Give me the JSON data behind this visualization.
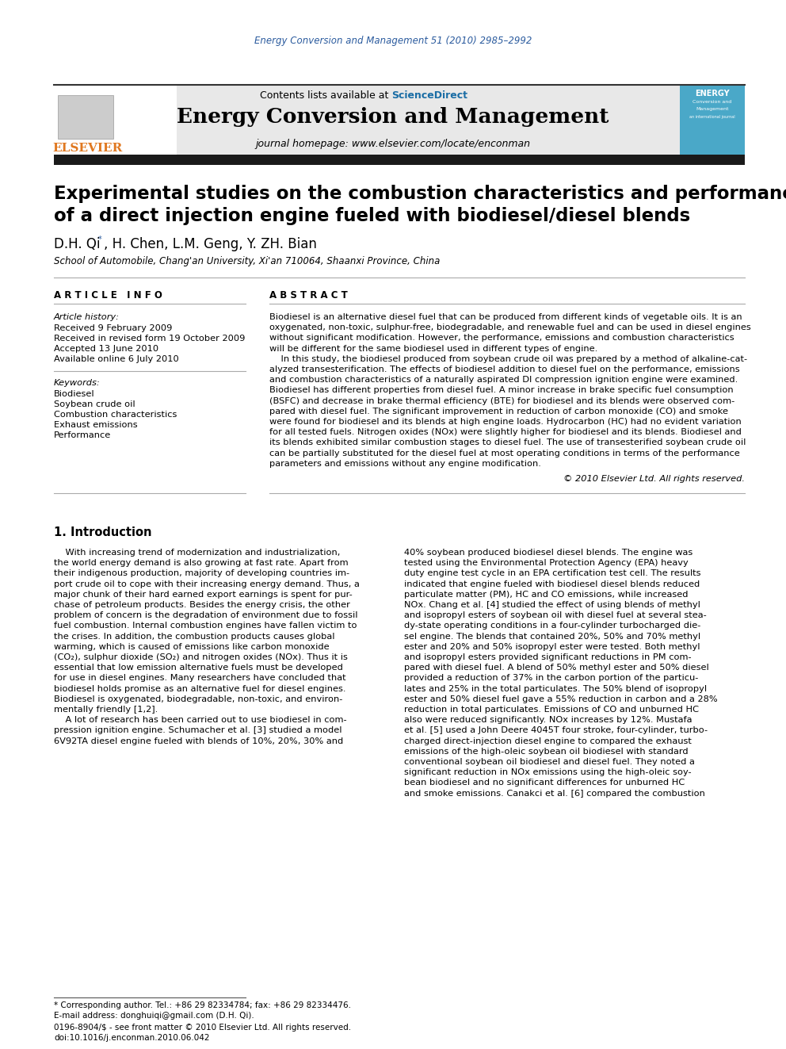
{
  "journal_ref": "Energy Conversion and Management 51 (2010) 2985–2992",
  "contents_text": "Contents lists available at ",
  "sciencedirect": "ScienceDirect",
  "journal_name": "Energy Conversion and Management",
  "journal_homepage": "journal homepage: www.elsevier.com/locate/enconman",
  "paper_title_line1": "Experimental studies on the combustion characteristics and performance",
  "paper_title_line2": "of a direct injection engine fueled with biodiesel/diesel blends",
  "authors": "D.H. Qi",
  "authors_rest": ", H. Chen, L.M. Geng, Y. ZH. Bian",
  "affiliation": "School of Automobile, Chang'an University, Xi'an 710064, Shaanxi Province, China",
  "article_info_header": "A R T I C L E   I N F O",
  "abstract_header": "A B S T R A C T",
  "article_history_label": "Article history:",
  "received1": "Received 9 February 2009",
  "received2": "Received in revised form 19 October 2009",
  "accepted": "Accepted 13 June 2010",
  "available": "Available online 6 July 2010",
  "keywords_label": "Keywords:",
  "keyword1": "Biodiesel",
  "keyword2": "Soybean crude oil",
  "keyword3": "Combustion characteristics",
  "keyword4": "Exhaust emissions",
  "keyword5": "Performance",
  "copyright": "© 2010 Elsevier Ltd. All rights reserved.",
  "intro_header": "1. Introduction",
  "footnote_star": "* Corresponding author. Tel.: +86 29 82334784; fax: +86 29 82334476.",
  "footnote_email": "E-mail address: donghuiqi@gmail.com (D.H. Qi).",
  "footnote_issn": "0196-8904/$ - see front matter © 2010 Elsevier Ltd. All rights reserved.",
  "footnote_doi": "doi:10.1016/j.enconman.2010.06.042",
  "color_blue": "#2b5b9e",
  "color_sciencedirect": "#1a6da5",
  "color_orange": "#e07820",
  "color_darkbar": "#1a1a1a",
  "color_header_bg": "#e8e8e8",
  "background_color": "#ffffff",
  "abstract_lines": [
    "Biodiesel is an alternative diesel fuel that can be produced from different kinds of vegetable oils. It is an",
    "oxygenated, non-toxic, sulphur-free, biodegradable, and renewable fuel and can be used in diesel engines",
    "without significant modification. However, the performance, emissions and combustion characteristics",
    "will be different for the same biodiesel used in different types of engine.",
    "    In this study, the biodiesel produced from soybean crude oil was prepared by a method of alkaline-cat-",
    "alyzed transesterification. The effects of biodiesel addition to diesel fuel on the performance, emissions",
    "and combustion characteristics of a naturally aspirated DI compression ignition engine were examined.",
    "Biodiesel has different properties from diesel fuel. A minor increase in brake specific fuel consumption",
    "(BSFC) and decrease in brake thermal efficiency (BTE) for biodiesel and its blends were observed com-",
    "pared with diesel fuel. The significant improvement in reduction of carbon monoxide (CO) and smoke",
    "were found for biodiesel and its blends at high engine loads. Hydrocarbon (HC) had no evident variation",
    "for all tested fuels. Nitrogen oxides (NOx) were slightly higher for biodiesel and its blends. Biodiesel and",
    "its blends exhibited similar combustion stages to diesel fuel. The use of transesterified soybean crude oil",
    "can be partially substituted for the diesel fuel at most operating conditions in terms of the performance",
    "parameters and emissions without any engine modification."
  ],
  "intro_col1_lines": [
    "    With increasing trend of modernization and industrialization,",
    "the world energy demand is also growing at fast rate. Apart from",
    "their indigenous production, majority of developing countries im-",
    "port crude oil to cope with their increasing energy demand. Thus, a",
    "major chunk of their hard earned export earnings is spent for pur-",
    "chase of petroleum products. Besides the energy crisis, the other",
    "problem of concern is the degradation of environment due to fossil",
    "fuel combustion. Internal combustion engines have fallen victim to",
    "the crises. In addition, the combustion products causes global",
    "warming, which is caused of emissions like carbon monoxide",
    "(CO₂), sulphur dioxide (SO₂) and nitrogen oxides (NOx). Thus it is",
    "essential that low emission alternative fuels must be developed",
    "for use in diesel engines. Many researchers have concluded that",
    "biodiesel holds promise as an alternative fuel for diesel engines.",
    "Biodiesel is oxygenated, biodegradable, non-toxic, and environ-",
    "mentally friendly [1,2].",
    "    A lot of research has been carried out to use biodiesel in com-",
    "pression ignition engine. Schumacher et al. [3] studied a model",
    "6V92TA diesel engine fueled with blends of 10%, 20%, 30% and"
  ],
  "intro_col2_lines": [
    "40% soybean produced biodiesel diesel blends. The engine was",
    "tested using the Environmental Protection Agency (EPA) heavy",
    "duty engine test cycle in an EPA certification test cell. The results",
    "indicated that engine fueled with biodiesel diesel blends reduced",
    "particulate matter (PM), HC and CO emissions, while increased",
    "NOx. Chang et al. [4] studied the effect of using blends of methyl",
    "and isopropyl esters of soybean oil with diesel fuel at several stea-",
    "dy-state operating conditions in a four-cylinder turbocharged die-",
    "sel engine. The blends that contained 20%, 50% and 70% methyl",
    "ester and 20% and 50% isopropyl ester were tested. Both methyl",
    "and isopropyl esters provided significant reductions in PM com-",
    "pared with diesel fuel. A blend of 50% methyl ester and 50% diesel",
    "provided a reduction of 37% in the carbon portion of the particu-",
    "lates and 25% in the total particulates. The 50% blend of isopropyl",
    "ester and 50% diesel fuel gave a 55% reduction in carbon and a 28%",
    "reduction in total particulates. Emissions of CO and unburned HC",
    "also were reduced significantly. NOx increases by 12%. Mustafa",
    "et al. [5] used a John Deere 4045T four stroke, four-cylinder, turbo-",
    "charged direct-injection diesel engine to compared the exhaust",
    "emissions of the high-oleic soybean oil biodiesel with standard",
    "conventional soybean oil biodiesel and diesel fuel. They noted a",
    "significant reduction in NOx emissions using the high-oleic soy-",
    "bean biodiesel and no significant differences for unburned HC",
    "and smoke emissions. Canakci et al. [6] compared the combustion"
  ]
}
